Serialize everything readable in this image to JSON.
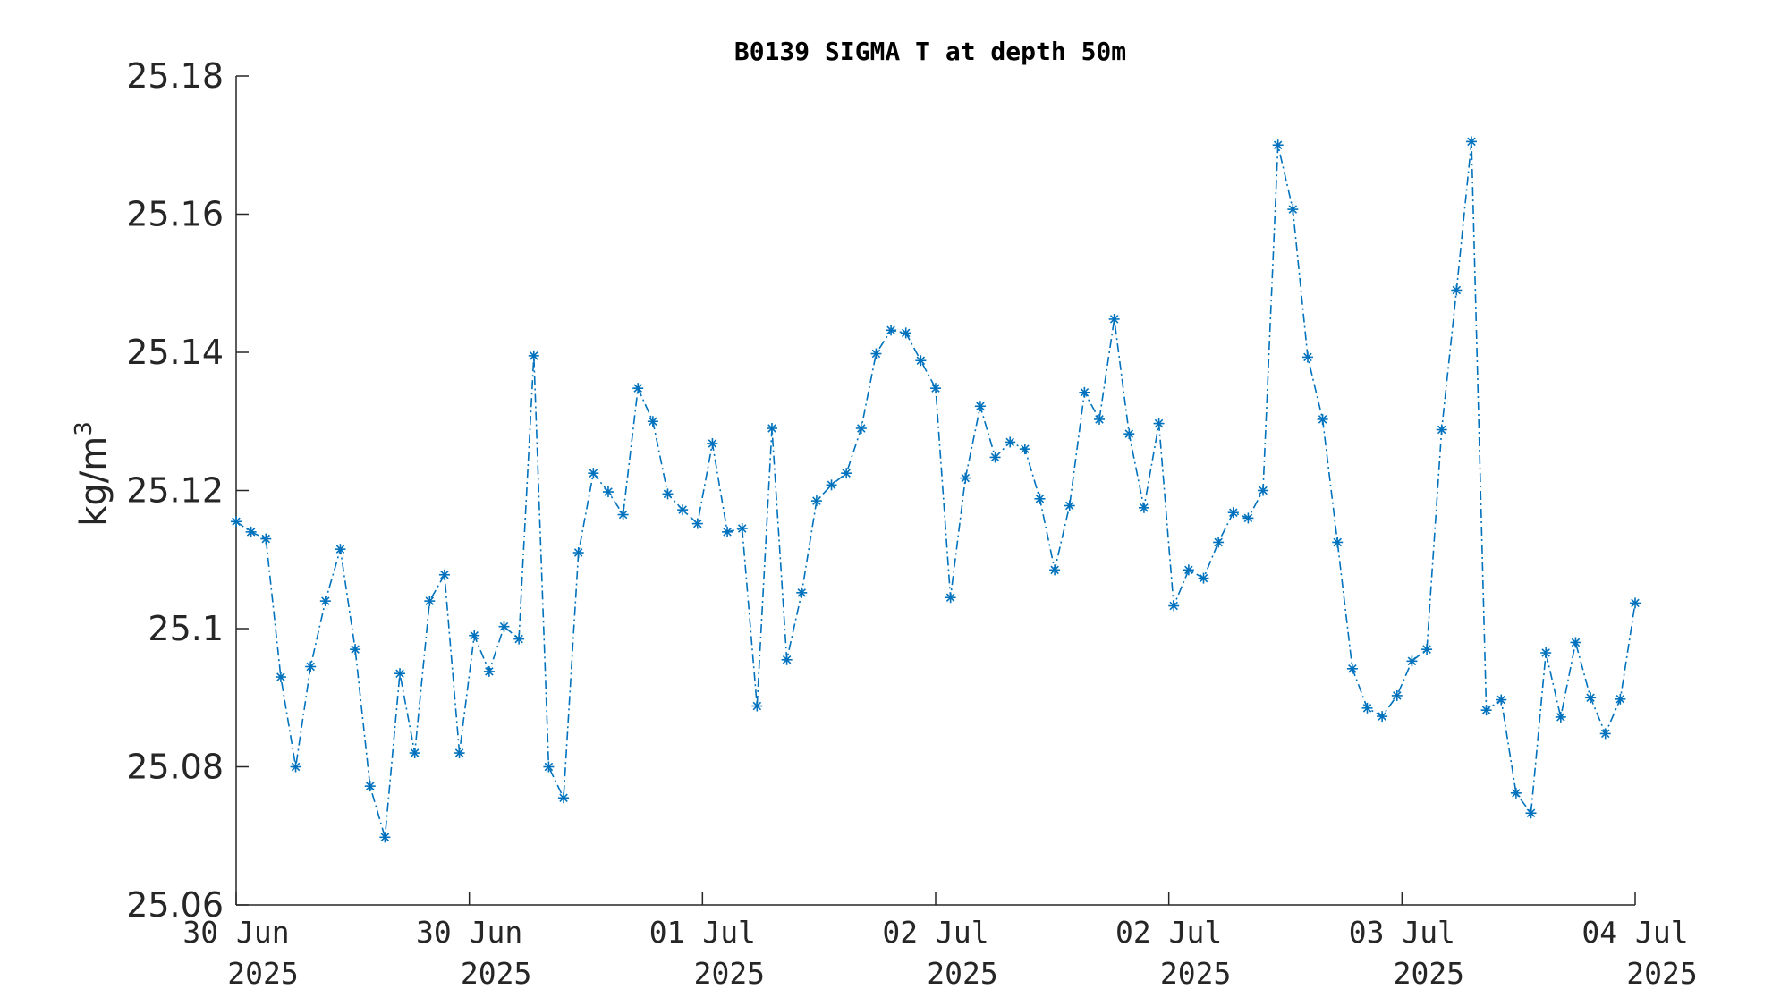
{
  "chart_data": {
    "type": "line",
    "title": "B0139 SIGMA T at depth 50m",
    "ylabel": "kg/m",
    "ylabel_superscript": "3",
    "xlabel": "",
    "ylim": [
      25.06,
      25.18
    ],
    "yticks": [
      "25.06",
      "25.08",
      "25.1",
      "25.12",
      "25.14",
      "25.16",
      "25.18"
    ],
    "ytick_values": [
      25.06,
      25.08,
      25.1,
      25.12,
      25.14,
      25.16,
      25.18
    ],
    "xticks": [
      {
        "line1": "30 Jun",
        "line2": "2025"
      },
      {
        "line1": "30 Jun",
        "line2": "2025"
      },
      {
        "line1": "01 Jul",
        "line2": "2025"
      },
      {
        "line1": "02 Jul",
        "line2": "2025"
      },
      {
        "line1": "02 Jul",
        "line2": "2025"
      },
      {
        "line1": "03 Jul",
        "line2": "2025"
      },
      {
        "line1": "04 Jul",
        "line2": "2025"
      }
    ],
    "grid": false,
    "line_style": "dash-dot",
    "marker": "asterisk",
    "series": [
      {
        "color": "#0072BD",
        "values": [
          25.1155,
          25.114,
          25.113,
          25.093,
          25.08,
          25.0945,
          25.104,
          25.1115,
          25.097,
          25.0772,
          25.0698,
          25.0935,
          25.082,
          25.104,
          25.1078,
          25.082,
          25.099,
          25.0938,
          25.1003,
          25.0985,
          25.1395,
          25.08,
          25.0755,
          25.111,
          25.1225,
          25.1198,
          25.1165,
          25.1348,
          25.13,
          25.1195,
          25.1172,
          25.1152,
          25.1268,
          25.114,
          25.1145,
          25.0888,
          25.129,
          25.0955,
          25.1052,
          25.1185,
          25.1208,
          25.1225,
          25.129,
          25.1398,
          25.1432,
          25.1428,
          25.1388,
          25.1348,
          25.1045,
          25.1218,
          25.1322,
          25.1248,
          25.127,
          25.126,
          25.1188,
          25.1085,
          25.1178,
          25.1342,
          25.1303,
          25.1448,
          25.1282,
          25.1175,
          25.1297,
          25.1033,
          25.1085,
          25.1073,
          25.1125,
          25.1168,
          25.116,
          25.12,
          25.17,
          25.1607,
          25.1393,
          25.1303,
          25.1125,
          25.0942,
          25.0885,
          25.0873,
          25.0903,
          25.0953,
          25.097,
          25.1288,
          25.149,
          25.1705,
          25.0882,
          25.0897,
          25.0762,
          25.0733,
          25.0965,
          25.0872,
          25.098,
          25.09,
          25.0848,
          25.0898,
          25.1037
        ]
      }
    ]
  }
}
